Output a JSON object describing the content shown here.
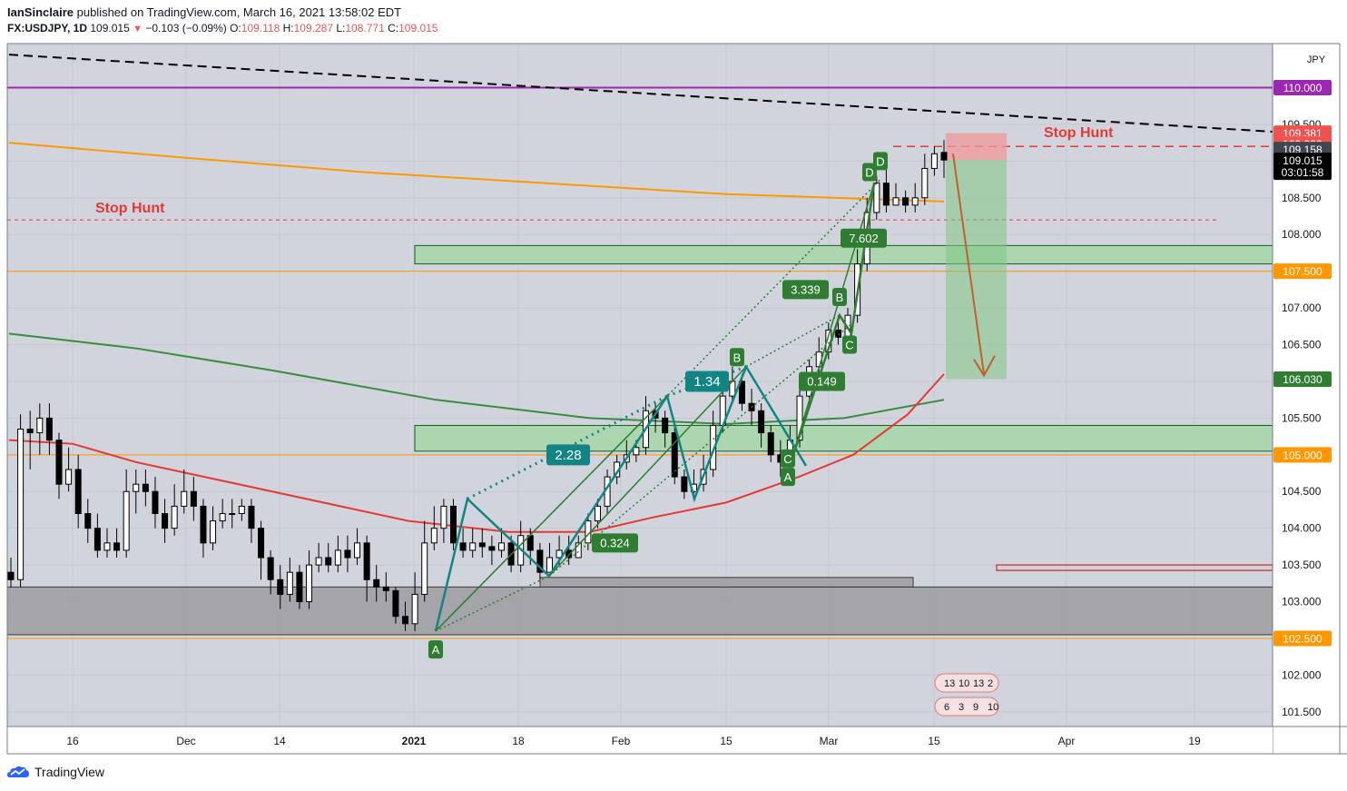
{
  "header": {
    "author": "IanSinclaire",
    "published_text": "published on TradingView.com, March 16, 2021 13:58:02 EDT",
    "symbol": "FX:USDJPY, 1D",
    "last": "109.015",
    "change": "−0.103 (−0.09%)",
    "o_label": "O:",
    "o_value": "109.118",
    "h_label": "H:",
    "h_value": "109.287",
    "l_label": "L:",
    "l_value": "108.771",
    "c_label": "C:",
    "c_value": "109.015"
  },
  "footer": {
    "brand": "TradingView"
  },
  "colors": {
    "background": "#d1d4dc",
    "up_candle": "#ffffff",
    "down_candle": "#000000",
    "ema_red": "#e53935",
    "ma_green": "#388e3c",
    "ma_orange": "#ff9800",
    "pattern_teal": "#138484",
    "pattern_green": "#2e7d32",
    "stop_hunt": "#e53935",
    "purple_line": "#9c27b0",
    "zone_green": "#a5d6a7",
    "zone_gray": "#9e9ea3"
  },
  "chart_data": {
    "type": "candlestick",
    "symbol": "FX:USDJPY",
    "interval": "1D",
    "currency_label": "JPY",
    "ylim": [
      101.3,
      110.6
    ],
    "y_ticks": [
      "101.500",
      "102.000",
      "102.500",
      "103.000",
      "103.500",
      "104.000",
      "104.500",
      "105.000",
      "105.500",
      "106.000",
      "106.500",
      "107.000",
      "107.500",
      "108.000",
      "108.500",
      "109.000",
      "109.500",
      "110.000"
    ],
    "x_ticks": [
      "16",
      "Dec",
      "14",
      "2021",
      "18",
      "Feb",
      "15",
      "Mar",
      "15",
      "Apr",
      "19"
    ],
    "candles": [
      [
        103.4,
        103.3,
        103.6,
        103.2
      ],
      [
        103.3,
        105.35,
        105.55,
        103.2
      ],
      [
        105.35,
        105.3,
        105.6,
        104.8
      ],
      [
        105.3,
        105.5,
        105.7,
        105.0
      ],
      [
        105.5,
        105.2,
        105.7,
        105.0
      ],
      [
        105.2,
        104.6,
        105.3,
        104.4
      ],
      [
        104.6,
        104.8,
        105.1,
        104.5
      ],
      [
        104.8,
        104.2,
        105.0,
        104.0
      ],
      [
        104.2,
        104.0,
        104.4,
        103.8
      ],
      [
        104.0,
        103.7,
        104.2,
        103.6
      ],
      [
        103.7,
        103.8,
        104.0,
        103.6
      ],
      [
        103.8,
        103.7,
        104.0,
        103.6
      ],
      [
        103.7,
        104.5,
        104.8,
        103.6
      ],
      [
        104.5,
        104.6,
        104.8,
        104.2
      ],
      [
        104.6,
        104.5,
        104.8,
        104.3
      ],
      [
        104.5,
        104.2,
        104.7,
        104.0
      ],
      [
        104.2,
        104.0,
        104.4,
        103.8
      ],
      [
        104.0,
        104.3,
        104.6,
        103.9
      ],
      [
        104.3,
        104.5,
        104.8,
        104.2
      ],
      [
        104.5,
        104.3,
        104.7,
        104.1
      ],
      [
        104.3,
        103.8,
        104.4,
        103.6
      ],
      [
        103.8,
        104.1,
        104.3,
        103.7
      ],
      [
        104.1,
        104.2,
        104.4,
        104.0
      ],
      [
        104.2,
        104.2,
        104.4,
        104.0
      ],
      [
        104.2,
        104.3,
        104.4,
        104.1
      ],
      [
        104.3,
        104.0,
        104.4,
        103.8
      ],
      [
        104.0,
        103.6,
        104.1,
        103.3
      ],
      [
        103.6,
        103.3,
        103.7,
        103.1
      ],
      [
        103.3,
        103.1,
        103.5,
        102.9
      ],
      [
        103.1,
        103.4,
        103.6,
        103.0
      ],
      [
        103.4,
        103.0,
        103.5,
        102.9
      ],
      [
        103.0,
        103.5,
        103.7,
        102.9
      ],
      [
        103.5,
        103.6,
        103.8,
        103.4
      ],
      [
        103.6,
        103.5,
        103.8,
        103.4
      ],
      [
        103.5,
        103.7,
        103.9,
        103.4
      ],
      [
        103.7,
        103.6,
        103.9,
        103.4
      ],
      [
        103.6,
        103.8,
        104.0,
        103.5
      ],
      [
        103.8,
        103.3,
        103.9,
        103.0
      ],
      [
        103.3,
        103.2,
        103.5,
        103.0
      ],
      [
        103.2,
        103.15,
        103.4,
        103.0
      ],
      [
        103.15,
        102.8,
        103.2,
        102.7
      ],
      [
        102.8,
        102.7,
        103.0,
        102.6
      ],
      [
        102.7,
        103.1,
        103.4,
        102.6
      ],
      [
        103.1,
        103.8,
        104.1,
        103.0
      ],
      [
        103.8,
        104.0,
        104.3,
        103.7
      ],
      [
        104.0,
        104.3,
        104.4,
        103.8
      ],
      [
        104.3,
        103.8,
        104.4,
        103.7
      ],
      [
        103.8,
        103.7,
        104.0,
        103.6
      ],
      [
        103.7,
        103.8,
        104.0,
        103.6
      ],
      [
        103.8,
        103.75,
        104.0,
        103.6
      ],
      [
        103.75,
        103.7,
        103.9,
        103.5
      ],
      [
        103.7,
        103.8,
        104.0,
        103.6
      ],
      [
        103.8,
        103.5,
        103.9,
        103.4
      ],
      [
        103.5,
        103.9,
        104.1,
        103.4
      ],
      [
        103.9,
        103.7,
        104.0,
        103.5
      ],
      [
        103.7,
        103.4,
        103.8,
        103.3
      ],
      [
        103.4,
        103.6,
        103.8,
        103.4
      ],
      [
        103.6,
        103.7,
        103.9,
        103.5
      ],
      [
        103.7,
        103.6,
        103.9,
        103.5
      ],
      [
        103.6,
        103.8,
        103.9,
        103.6
      ],
      [
        103.8,
        104.1,
        104.2,
        103.7
      ],
      [
        104.1,
        104.3,
        104.4,
        104.0
      ],
      [
        104.3,
        104.7,
        104.8,
        104.2
      ],
      [
        104.7,
        104.9,
        105.0,
        104.6
      ],
      [
        104.9,
        105.0,
        105.2,
        104.8
      ],
      [
        105.0,
        105.1,
        105.2,
        104.9
      ],
      [
        105.1,
        105.6,
        105.8,
        105.0
      ],
      [
        105.6,
        105.5,
        105.7,
        105.3
      ],
      [
        105.5,
        105.3,
        105.6,
        105.1
      ],
      [
        105.3,
        104.7,
        105.4,
        104.6
      ],
      [
        104.7,
        104.5,
        104.8,
        104.4
      ],
      [
        104.5,
        104.6,
        104.8,
        104.4
      ],
      [
        104.6,
        104.8,
        105.0,
        104.5
      ],
      [
        104.8,
        105.4,
        105.6,
        104.7
      ],
      [
        105.4,
        105.8,
        106.0,
        105.3
      ],
      [
        105.8,
        106.0,
        106.2,
        105.7
      ],
      [
        106.0,
        105.7,
        106.1,
        105.6
      ],
      [
        105.7,
        105.6,
        105.9,
        105.4
      ],
      [
        105.6,
        105.3,
        105.7,
        105.1
      ],
      [
        105.3,
        105.0,
        105.4,
        104.9
      ],
      [
        105.0,
        104.9,
        105.2,
        104.7
      ],
      [
        104.9,
        105.2,
        105.4,
        104.8
      ],
      [
        105.2,
        105.8,
        106.0,
        105.1
      ],
      [
        105.8,
        106.2,
        106.3,
        105.7
      ],
      [
        106.2,
        106.4,
        106.6,
        106.1
      ],
      [
        106.4,
        106.7,
        106.8,
        106.3
      ],
      [
        106.7,
        106.6,
        106.9,
        106.5
      ],
      [
        106.6,
        106.9,
        107.0,
        106.5
      ],
      [
        106.9,
        107.6,
        107.8,
        106.8
      ],
      [
        107.6,
        108.3,
        108.5,
        107.5
      ],
      [
        108.3,
        108.7,
        108.8,
        108.2
      ],
      [
        108.7,
        108.4,
        108.9,
        108.3
      ],
      [
        108.4,
        108.5,
        108.7,
        108.4
      ],
      [
        108.5,
        108.4,
        108.6,
        108.3
      ],
      [
        108.4,
        108.5,
        108.7,
        108.3
      ],
      [
        108.5,
        108.9,
        109.1,
        108.4
      ],
      [
        108.9,
        109.1,
        109.2,
        108.8
      ],
      [
        109.118,
        109.015,
        109.287,
        108.771
      ]
    ],
    "horizontal_levels": [
      {
        "label": "110.000",
        "value": 110.0
      },
      {
        "label": "107.500",
        "value": 107.5
      },
      {
        "label": "105.000",
        "value": 105.0
      },
      {
        "label": "102.500",
        "value": 102.5
      }
    ],
    "stop_hunt_levels": [
      {
        "label": "Stop Hunt",
        "value": 108.2
      },
      {
        "label": "Stop Hunt",
        "value": 109.2
      }
    ],
    "zones": [
      {
        "type": "green",
        "low": 107.6,
        "high": 107.85
      },
      {
        "type": "green",
        "low": 105.05,
        "high": 105.4
      },
      {
        "type": "gray",
        "low": 102.55,
        "high": 103.2
      },
      {
        "type": "gray",
        "low": 103.2,
        "high": 103.33
      }
    ],
    "trade": {
      "entry": 109.015,
      "stop": 109.381,
      "target": 106.03
    },
    "price_labels": [
      {
        "text": "110.000",
        "value": 110.0,
        "color": "#9c27b0"
      },
      {
        "text": "109.381",
        "value": 109.381,
        "color": "#ef5350"
      },
      {
        "text": "109.232",
        "value": 109.232,
        "color": "#ef5350"
      },
      {
        "text": "109.158",
        "value": 109.158,
        "color": "#434651"
      },
      {
        "text": "109.015",
        "value": 109.015,
        "color": "#000000",
        "sub": "03:01:58"
      },
      {
        "text": "107.500",
        "value": 107.5,
        "color": "#ff9800"
      },
      {
        "text": "106.030",
        "value": 106.03,
        "color": "#2e7d32"
      },
      {
        "text": "105.000",
        "value": 105.0,
        "color": "#ff9800"
      },
      {
        "text": "102.500",
        "value": 102.5,
        "color": "#ff9800"
      }
    ],
    "ratio_labels": [
      "2.28",
      "1.34",
      "0.324",
      "3.339",
      "0.149",
      "7.602"
    ],
    "pattern_point_labels": [
      "A",
      "B",
      "C",
      "D",
      "A",
      "B",
      "C",
      "D"
    ],
    "events_top": [
      "13",
      "10",
      "13",
      "2"
    ],
    "events_bottom": [
      "6",
      "3",
      "9",
      "10"
    ]
  }
}
